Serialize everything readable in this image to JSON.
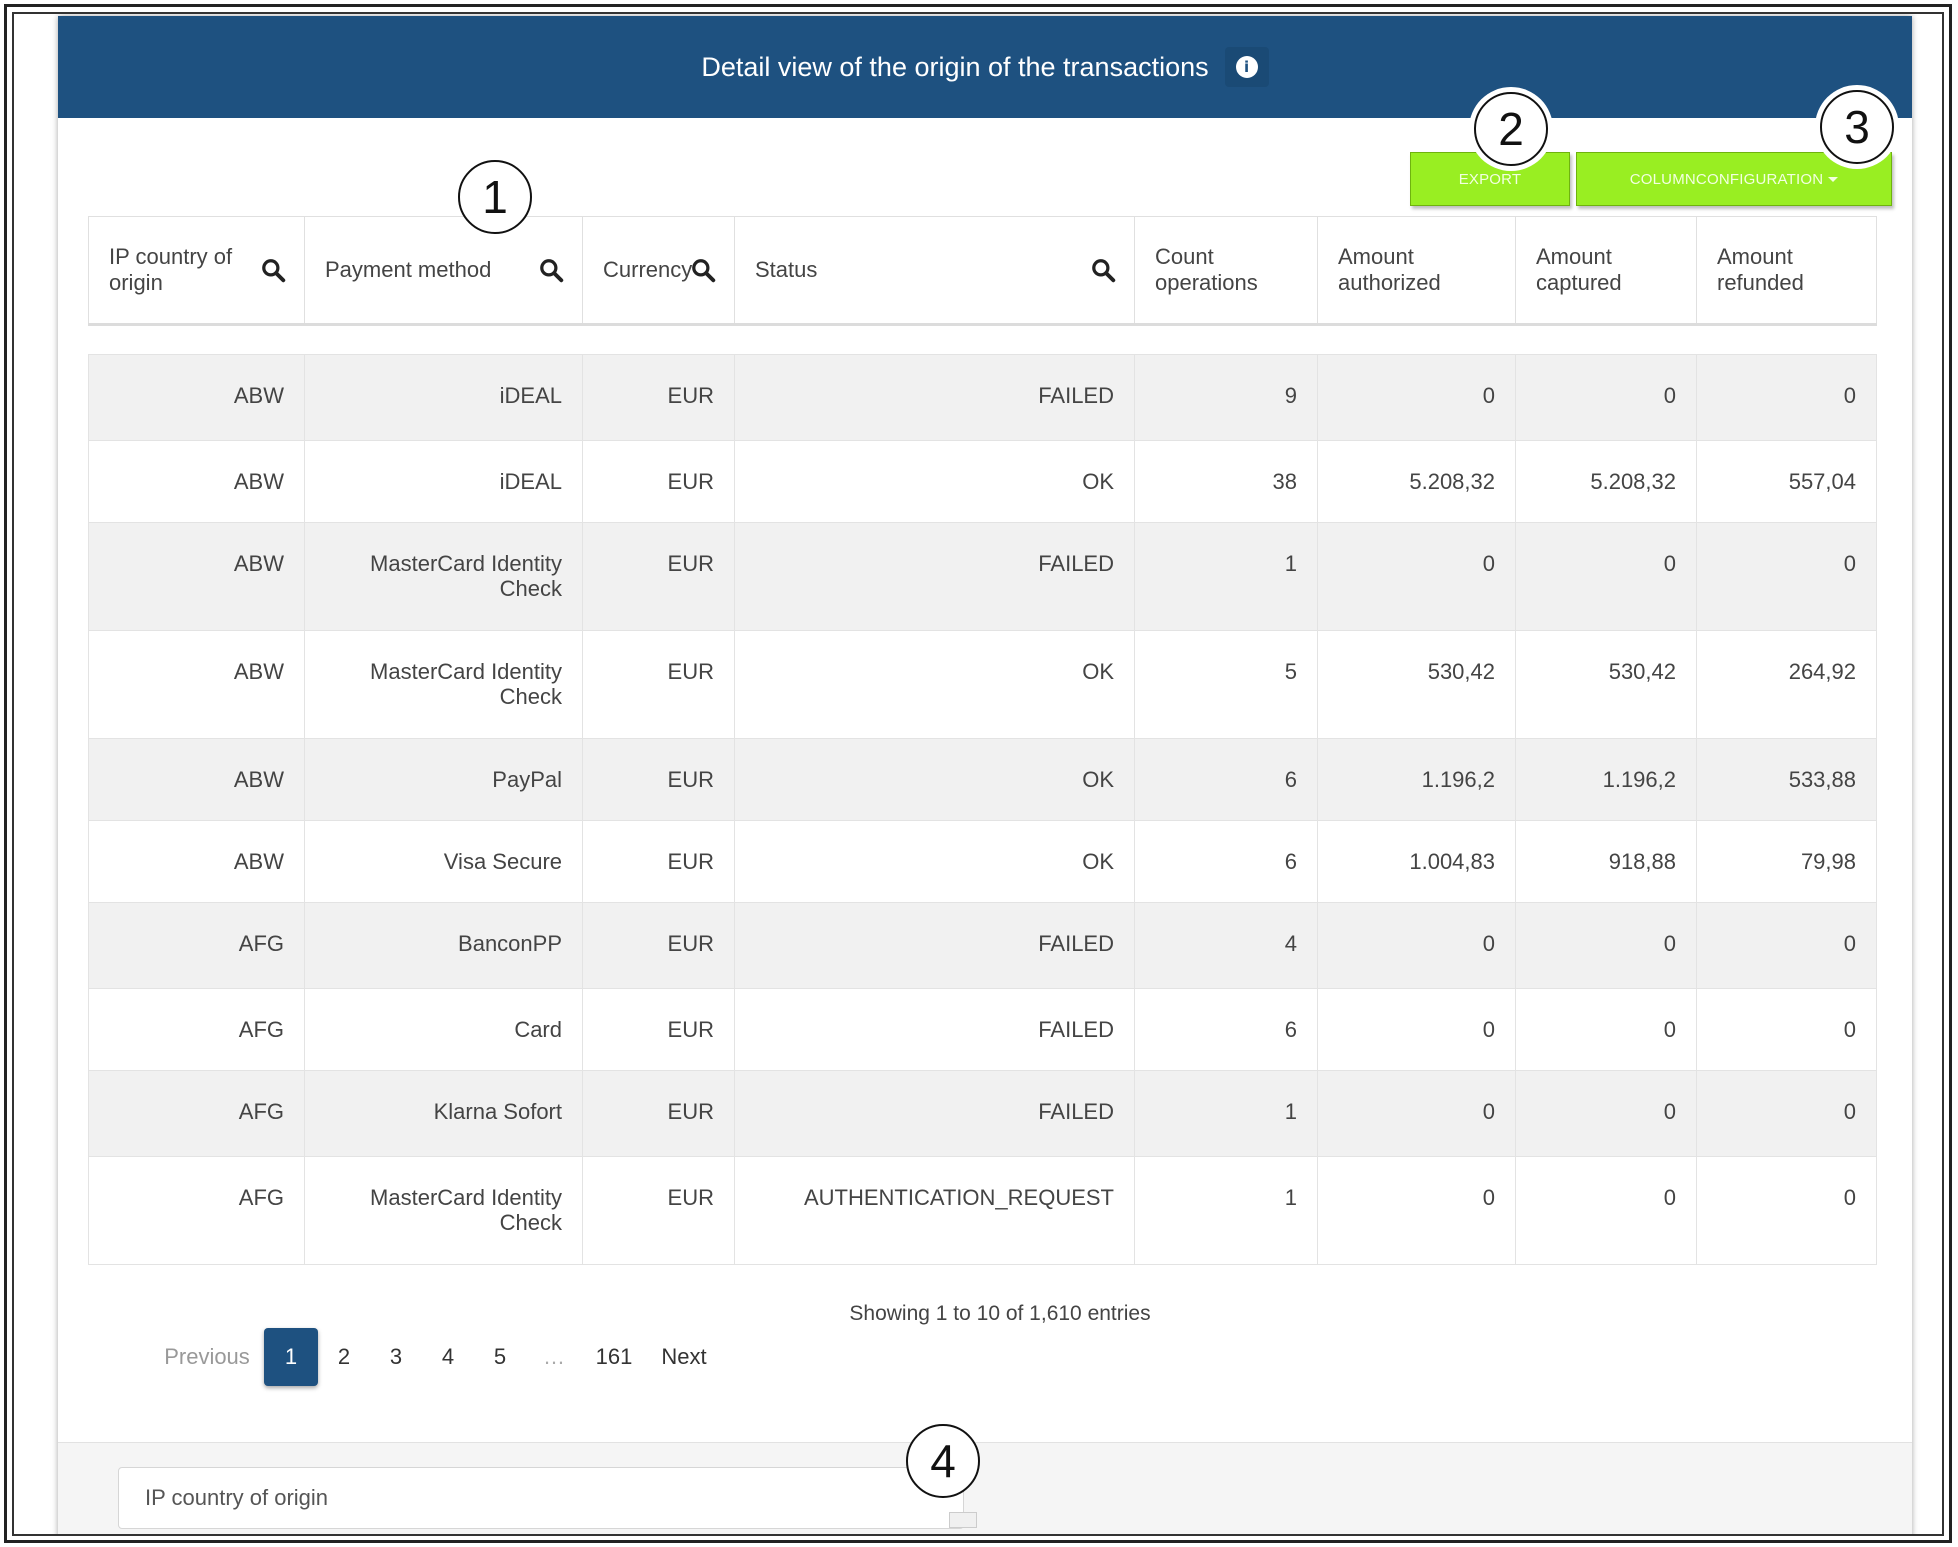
{
  "header": {
    "title": "Detail view of the origin of the transactions",
    "info_icon": "info-icon"
  },
  "toolbar": {
    "export_label": "EXPORT",
    "columnconfig_label": "COLUMNCONFIGURATION"
  },
  "table": {
    "columns": [
      {
        "label": "IP country of origin",
        "searchable": true
      },
      {
        "label": "Payment method",
        "searchable": true
      },
      {
        "label": "Currency",
        "searchable": true
      },
      {
        "label": "Status",
        "searchable": true
      },
      {
        "label": "Count operations",
        "searchable": false
      },
      {
        "label": "Amount authorized",
        "searchable": false
      },
      {
        "label": "Amount captured",
        "searchable": false
      },
      {
        "label": "Amount refunded",
        "searchable": false
      }
    ],
    "rows": [
      [
        "ABW",
        "iDEAL",
        "EUR",
        "FAILED",
        "9",
        "0",
        "0",
        "0"
      ],
      [
        "ABW",
        "iDEAL",
        "EUR",
        "OK",
        "38",
        "5.208,32",
        "5.208,32",
        "557,04"
      ],
      [
        "ABW",
        "MasterCard Identity Check",
        "EUR",
        "FAILED",
        "1",
        "0",
        "0",
        "0"
      ],
      [
        "ABW",
        "MasterCard Identity Check",
        "EUR",
        "OK",
        "5",
        "530,42",
        "530,42",
        "264,92"
      ],
      [
        "ABW",
        "PayPal",
        "EUR",
        "OK",
        "6",
        "1.196,2",
        "1.196,2",
        "533,88"
      ],
      [
        "ABW",
        "Visa Secure",
        "EUR",
        "OK",
        "6",
        "1.004,83",
        "918,88",
        "79,98"
      ],
      [
        "AFG",
        "BanconPP",
        "EUR",
        "FAILED",
        "4",
        "0",
        "0",
        "0"
      ],
      [
        "AFG",
        "Card",
        "EUR",
        "FAILED",
        "6",
        "0",
        "0",
        "0"
      ],
      [
        "AFG",
        "Klarna Sofort",
        "EUR",
        "FAILED",
        "1",
        "0",
        "0",
        "0"
      ],
      [
        "AFG",
        "MasterCard Identity Check",
        "EUR",
        "AUTHENTICATION_REQUEST",
        "1",
        "0",
        "0",
        "0"
      ]
    ],
    "info": "Showing 1 to 10 of 1,610 entries"
  },
  "pagination": {
    "previous": "Previous",
    "pages": [
      "1",
      "2",
      "3",
      "4",
      "5"
    ],
    "active": "1",
    "ellipsis": "…",
    "last": "161",
    "next": "Next"
  },
  "footer": {
    "groupby_value": "IP country of origin"
  },
  "callouts": [
    "1",
    "2",
    "3",
    "4"
  ],
  "colors": {
    "header_bg": "#1e5180",
    "button_green": "#99ee22",
    "active_page": "#1e5180"
  }
}
